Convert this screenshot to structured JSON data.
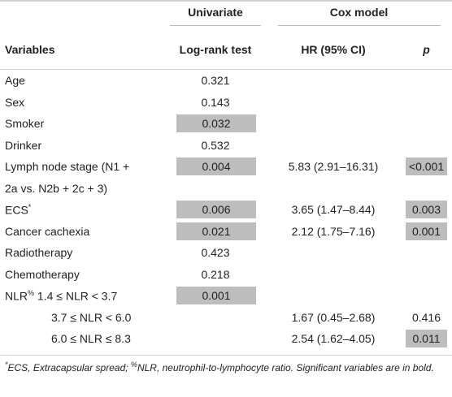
{
  "header": {
    "group_univariate": "Univariate",
    "group_cox": "Cox model",
    "col_variables": "Variables",
    "col_logrank": "Log-rank test",
    "col_hr": "HR (95% CI)",
    "col_p": "p"
  },
  "rows": [
    {
      "variable": "Age",
      "logrank": "0.321",
      "hr": "",
      "p": ""
    },
    {
      "variable": "Sex",
      "logrank": "0.143",
      "hr": "",
      "p": ""
    },
    {
      "variable": "Smoker",
      "logrank": "0.032",
      "hr": "",
      "p": ""
    },
    {
      "variable": "Drinker",
      "logrank": "0.532",
      "hr": "",
      "p": ""
    },
    {
      "variable": "Lymph node stage (N1 +",
      "logrank": "0.004",
      "hr": "5.83 (2.91–16.31)",
      "p": "<0.001"
    },
    {
      "variable": "2a vs. N2b + 2c + 3)",
      "logrank": "",
      "hr": "",
      "p": ""
    },
    {
      "variable": "ECS",
      "variable_sup": "*",
      "logrank": "0.006",
      "hr": "3.65 (1.47–8.44)",
      "p": "0.003"
    },
    {
      "variable": "Cancer cachexia",
      "logrank": "0.021",
      "hr": "2.12 (1.75–7.16)",
      "p": "0.001"
    },
    {
      "variable": "Radiotherapy",
      "logrank": "0.423",
      "hr": "",
      "p": ""
    },
    {
      "variable": "Chemotherapy",
      "logrank": "0.218",
      "hr": "",
      "p": ""
    },
    {
      "variable": "NLR",
      "variable_sup": "%",
      "variable_suffix": " 1.4 ≤ NLR < 3.7",
      "logrank": "0.001",
      "hr": "",
      "p": ""
    },
    {
      "variable": "3.7 ≤ NLR < 6.0",
      "logrank": "",
      "hr": "1.67 (0.45–2.68)",
      "p": "0.416"
    },
    {
      "variable": "6.0 ≤ NLR ≤ 8.3",
      "logrank": "",
      "hr": "2.54 (1.62–4.05)",
      "p": "0.011"
    }
  ],
  "footnote": {
    "sup1": "*",
    "text1": "ECS, Extracapsular spread; ",
    "sup2": "%",
    "text2": "NLR, neutrophil-to-lymphocyte ratio. Significant variables are in bold."
  },
  "colors": {
    "highlight": "#bdbdbd",
    "rule": "#cfcfcf",
    "text": "#222222"
  }
}
